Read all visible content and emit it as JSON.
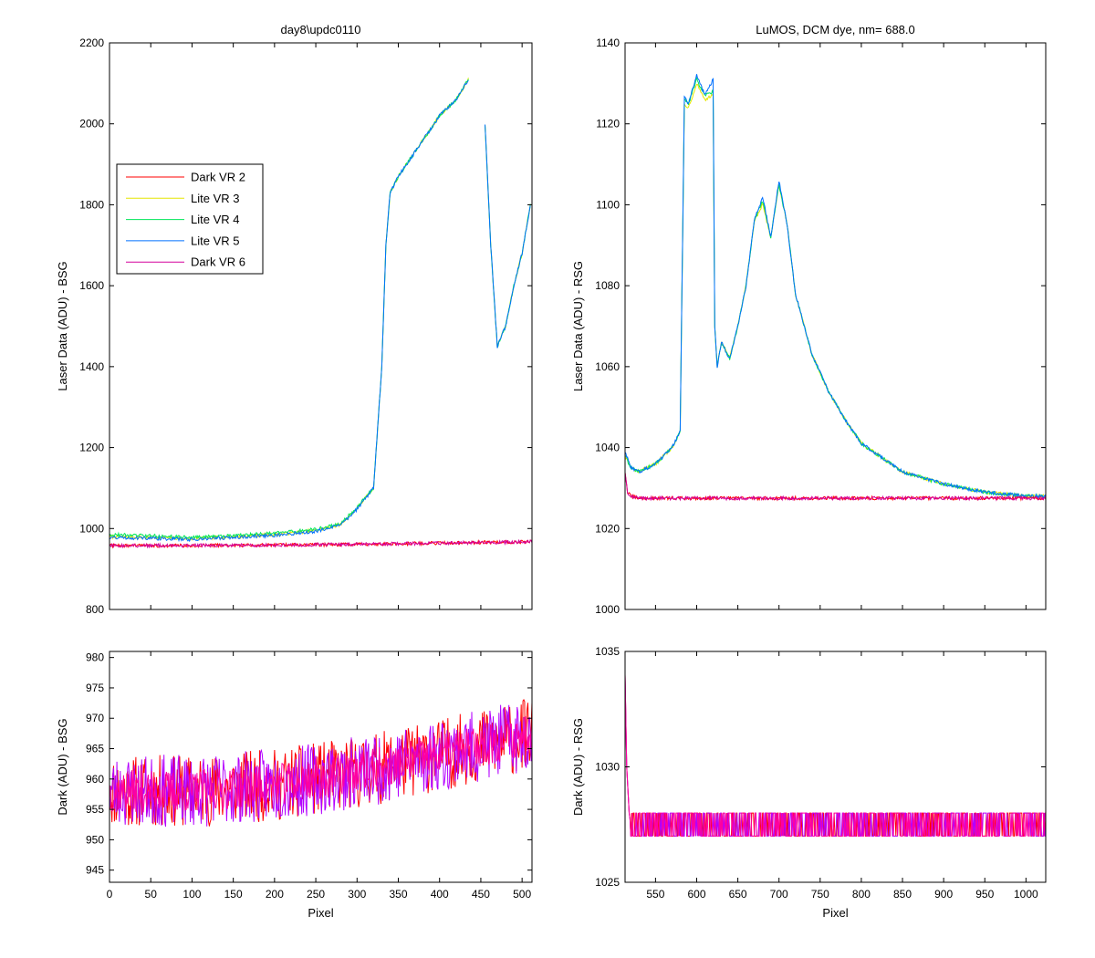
{
  "chart_data": [
    {
      "type": "line",
      "title": "day8\\updc0110",
      "xlabel": "",
      "ylabel": "Laser Data (ADU) - BSG",
      "xlim": [
        0,
        512
      ],
      "ylim": [
        800,
        2200
      ],
      "xticks": [
        0,
        50,
        100,
        150,
        200,
        250,
        300,
        350,
        400,
        450,
        500
      ],
      "yticks": [
        800,
        1000,
        1200,
        1400,
        1600,
        1800,
        2000,
        2200
      ],
      "show_xtick_labels": false,
      "legend": {
        "position": "upper-left",
        "entries": [
          {
            "label": "Dark VR 2",
            "color": "#ff0000"
          },
          {
            "label": "Lite VR 3",
            "color": "#e6e600"
          },
          {
            "label": "Lite VR 4",
            "color": "#00e65a"
          },
          {
            "label": "Lite VR 5",
            "color": "#0070ff"
          },
          {
            "label": "Dark VR 6",
            "color": "#d4009c"
          }
        ]
      },
      "series": [
        {
          "name": "Lite VR 3",
          "color": "#e6e600",
          "x": [
            0,
            50,
            100,
            150,
            200,
            250,
            280,
            300,
            320,
            330,
            335,
            340,
            350,
            380,
            400,
            420,
            435
          ],
          "y": [
            980,
            978,
            975,
            980,
            985,
            995,
            1010,
            1050,
            1100,
            1400,
            1700,
            1830,
            1870,
            1960,
            2020,
            2060,
            2110
          ]
        },
        {
          "name": "Lite VR 3",
          "color": "#e6e600",
          "x": [
            455,
            462,
            470,
            480,
            490,
            500,
            510
          ],
          "y": [
            2000,
            1700,
            1450,
            1500,
            1600,
            1680,
            1800
          ]
        },
        {
          "name": "Lite VR 4",
          "color": "#00e65a",
          "x": [
            0,
            50,
            100,
            150,
            200,
            250,
            280,
            300,
            320,
            330,
            335,
            340,
            350,
            380,
            400,
            420,
            435
          ],
          "y": [
            985,
            982,
            978,
            983,
            988,
            998,
            1012,
            1052,
            1100,
            1400,
            1700,
            1830,
            1870,
            1960,
            2020,
            2060,
            2110
          ]
        },
        {
          "name": "Lite VR 4",
          "color": "#00e65a",
          "x": [
            455,
            462,
            470,
            480,
            490,
            500,
            510
          ],
          "y": [
            2000,
            1700,
            1450,
            1500,
            1600,
            1680,
            1800
          ]
        },
        {
          "name": "Lite VR 5",
          "color": "#0070ff",
          "x": [
            0,
            50,
            100,
            150,
            200,
            250,
            280,
            300,
            320,
            330,
            335,
            340,
            350,
            380,
            400,
            420,
            435
          ],
          "y": [
            978,
            976,
            973,
            978,
            983,
            993,
            1008,
            1048,
            1100,
            1400,
            1700,
            1830,
            1870,
            1960,
            2020,
            2060,
            2110
          ]
        },
        {
          "name": "Lite VR 5",
          "color": "#0070ff",
          "x": [
            455,
            462,
            470,
            480,
            490,
            500,
            510
          ],
          "y": [
            2000,
            1700,
            1450,
            1500,
            1600,
            1680,
            1800
          ]
        },
        {
          "name": "Dark VR 2",
          "color": "#ff0000",
          "x": [
            0,
            100,
            200,
            300,
            400,
            500,
            512
          ],
          "y": [
            958,
            958,
            959,
            961,
            964,
            967,
            968
          ]
        },
        {
          "name": "Dark VR 6",
          "color": "#d4009c",
          "x": [
            0,
            100,
            200,
            300,
            400,
            500,
            512
          ],
          "y": [
            958,
            958,
            959,
            961,
            964,
            967,
            968
          ]
        }
      ]
    },
    {
      "type": "line",
      "title": "LuMOS, DCM dye, nm= 688.0",
      "xlabel": "",
      "ylabel": "Laser Data (ADU) - RSG",
      "xlim": [
        513,
        1024
      ],
      "ylim": [
        1000,
        1140
      ],
      "xticks": [
        550,
        600,
        650,
        700,
        750,
        800,
        850,
        900,
        950,
        1000
      ],
      "yticks": [
        1000,
        1020,
        1040,
        1060,
        1080,
        1100,
        1120,
        1140
      ],
      "show_xtick_labels": false,
      "series": [
        {
          "name": "Lite VR 3",
          "color": "#e6e600",
          "x": [
            513,
            520,
            530,
            550,
            570,
            580,
            585,
            590,
            600,
            610,
            620,
            622,
            625,
            630,
            640,
            650,
            660,
            670,
            680,
            690,
            700,
            710,
            720,
            740,
            760,
            780,
            800,
            850,
            900,
            950,
            1000,
            1024
          ],
          "y": [
            1038,
            1035,
            1034,
            1036,
            1040,
            1044,
            1125,
            1124,
            1130,
            1126,
            1127,
            1070,
            1060,
            1066,
            1062,
            1070,
            1080,
            1096,
            1100,
            1092,
            1105,
            1095,
            1078,
            1063,
            1054,
            1047,
            1041,
            1034,
            1031,
            1029,
            1028,
            1028
          ]
        },
        {
          "name": "Lite VR 4",
          "color": "#00e65a",
          "x": [
            513,
            520,
            530,
            550,
            570,
            580,
            585,
            590,
            600,
            610,
            620,
            622,
            625,
            630,
            640,
            650,
            660,
            670,
            680,
            690,
            700,
            710,
            720,
            740,
            760,
            780,
            800,
            850,
            900,
            950,
            1000,
            1024
          ],
          "y": [
            1038,
            1035,
            1034,
            1036,
            1040,
            1044,
            1126,
            1125,
            1131,
            1127,
            1128,
            1070,
            1060,
            1066,
            1062,
            1070,
            1080,
            1096,
            1101,
            1092,
            1105,
            1095,
            1078,
            1063,
            1054,
            1047,
            1041,
            1034,
            1031,
            1029,
            1028,
            1028
          ]
        },
        {
          "name": "Lite VR 5",
          "color": "#0070ff",
          "x": [
            513,
            520,
            530,
            550,
            570,
            580,
            585,
            590,
            600,
            610,
            620,
            622,
            625,
            630,
            640,
            650,
            660,
            670,
            680,
            690,
            700,
            710,
            720,
            740,
            760,
            780,
            800,
            850,
            900,
            950,
            1000,
            1024
          ],
          "y": [
            1039,
            1035,
            1034,
            1036,
            1040,
            1044,
            1127,
            1125,
            1132,
            1127,
            1131,
            1070,
            1060,
            1066,
            1062,
            1070,
            1080,
            1096,
            1102,
            1092,
            1106,
            1095,
            1078,
            1063,
            1054,
            1047,
            1041,
            1034,
            1031,
            1029,
            1028,
            1028
          ]
        },
        {
          "name": "Dark VR 2",
          "color": "#ff0000",
          "x": [
            513,
            516,
            520,
            530,
            1024
          ],
          "y": [
            1034,
            1029,
            1028,
            1027.5,
            1027.5
          ]
        },
        {
          "name": "Dark VR 6",
          "color": "#d4009c",
          "x": [
            513,
            516,
            520,
            530,
            1024
          ],
          "y": [
            1034,
            1029,
            1028,
            1027.5,
            1027.5
          ]
        }
      ]
    },
    {
      "type": "line",
      "title": "",
      "xlabel": "Pixel",
      "ylabel": "Dark (ADU) - BSG",
      "xlim": [
        0,
        512
      ],
      "ylim": [
        943,
        981
      ],
      "xticks": [
        0,
        50,
        100,
        150,
        200,
        250,
        300,
        350,
        400,
        450,
        500
      ],
      "yticks": [
        945,
        950,
        955,
        960,
        965,
        970,
        975,
        980
      ],
      "show_xtick_labels": true,
      "series": [
        {
          "name": "Dark VR 2",
          "color": "#ff0000",
          "x": [
            0,
            100,
            200,
            300,
            400,
            500,
            512
          ],
          "y": [
            958,
            958,
            959,
            961,
            964,
            967,
            968
          ],
          "noise": 12,
          "seed": 11
        },
        {
          "name": "Dark VR 6",
          "color": "#b400ff",
          "x": [
            0,
            100,
            200,
            300,
            400,
            500,
            512
          ],
          "y": [
            958,
            958,
            959,
            961,
            964,
            967,
            968
          ],
          "noise": 12,
          "seed": 23
        },
        {
          "name": "Dark VR 6",
          "color": "#ff00a0",
          "x": [
            0,
            100,
            200,
            300,
            400,
            500,
            512
          ],
          "y": [
            958,
            958,
            959,
            961,
            964,
            967,
            968
          ],
          "noise": 7,
          "seed": 37
        }
      ]
    },
    {
      "type": "line",
      "title": "",
      "xlabel": "Pixel",
      "ylabel": "Dark (ADU) - RSG",
      "xlim": [
        513,
        1024
      ],
      "ylim": [
        1025,
        1035
      ],
      "xticks": [
        550,
        600,
        650,
        700,
        750,
        800,
        850,
        900,
        950,
        1000
      ],
      "yticks": [
        1025,
        1030,
        1035
      ],
      "show_xtick_labels": true,
      "series": [
        {
          "name": "Dark VR 2",
          "color": "#ff0000",
          "x": [
            513,
            515,
            518,
            520,
            1024
          ],
          "y": [
            1034,
            1030,
            1028,
            1027.5,
            1027.5
          ],
          "alternate": [
            1027,
            1028
          ],
          "seed": 5
        },
        {
          "name": "Dark VR 6",
          "color": "#b400ff",
          "x": [
            513,
            515,
            518,
            520,
            1024
          ],
          "y": [
            1034,
            1030,
            1028,
            1027.5,
            1027.5
          ],
          "alternate": [
            1027,
            1028
          ],
          "seed": 9
        },
        {
          "name": "Dark VR 6",
          "color": "#ff00a0",
          "x": [
            513,
            515,
            518,
            520,
            1024
          ],
          "y": [
            1034,
            1030,
            1028,
            1027.5,
            1027.5
          ],
          "alternate": [
            1027,
            1028
          ],
          "seed": 13
        }
      ]
    }
  ]
}
